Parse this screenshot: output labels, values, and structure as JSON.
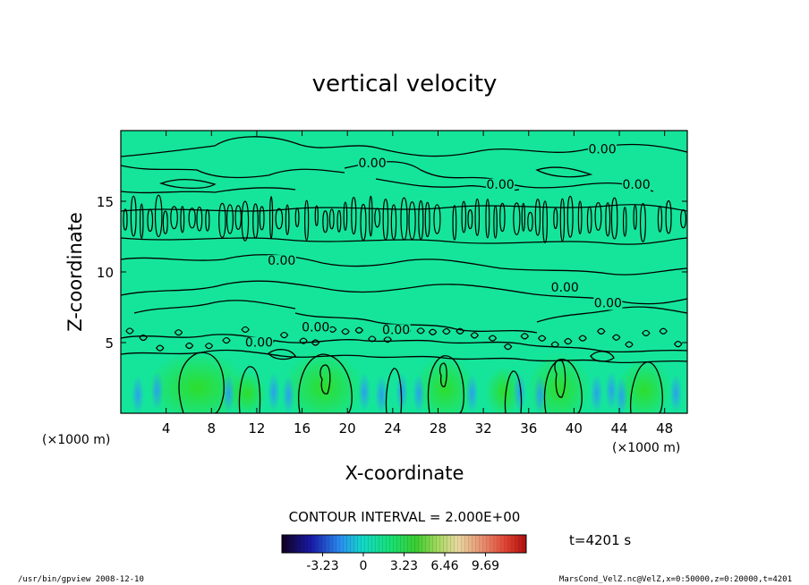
{
  "chart_data": {
    "type": "heatmap",
    "title": "vertical velocity",
    "xlabel": "X-coordinate",
    "ylabel": "Z-coordinate",
    "x_unit": "(×1000 m)",
    "y_unit": "(×1000 m)",
    "xlim": [
      0,
      50
    ],
    "ylim": [
      0,
      20
    ],
    "x_ticks": [
      4,
      8,
      12,
      16,
      20,
      24,
      28,
      32,
      36,
      40,
      44,
      48
    ],
    "y_ticks": [
      5,
      10,
      15
    ],
    "contour_interval_label": "CONTOUR INTERVAL = 2.000E+00",
    "contour_labels": [
      {
        "text": "0.00",
        "x": 42.5,
        "y": 18.4
      },
      {
        "text": "0.00",
        "x": 22.2,
        "y": 17.4
      },
      {
        "text": "0.00",
        "x": 33.5,
        "y": 15.9
      },
      {
        "text": "0.00",
        "x": 45.5,
        "y": 15.9
      },
      {
        "text": "0.00",
        "x": 14.2,
        "y": 10.5
      },
      {
        "text": "0.00",
        "x": 39.2,
        "y": 8.6
      },
      {
        "text": "0.00",
        "x": 43.0,
        "y": 7.5
      },
      {
        "text": "0.00",
        "x": 17.2,
        "y": 5.8
      },
      {
        "text": "0.00",
        "x": 24.3,
        "y": 5.6
      },
      {
        "text": "0.00",
        "x": 12.2,
        "y": 4.7
      }
    ],
    "colorbar": {
      "ticks": [
        "-3.23",
        "0",
        "3.23",
        "6.46",
        "9.69"
      ],
      "tick_values": [
        -3.23,
        0,
        3.23,
        6.46,
        9.69
      ],
      "range": [
        -6.46,
        12.92
      ]
    },
    "time_label": "t=4201 s",
    "colors": {
      "background_field": "#15e59a",
      "negative": "#2aa6ee",
      "positive": "#3ee23e",
      "contour": "#000000"
    }
  },
  "footer": {
    "left": "/usr/bin/gpview  2008-12-10",
    "right": "MarsCond_VelZ.nc@VelZ,x=0:50000,z=0:20000,t=4201"
  }
}
